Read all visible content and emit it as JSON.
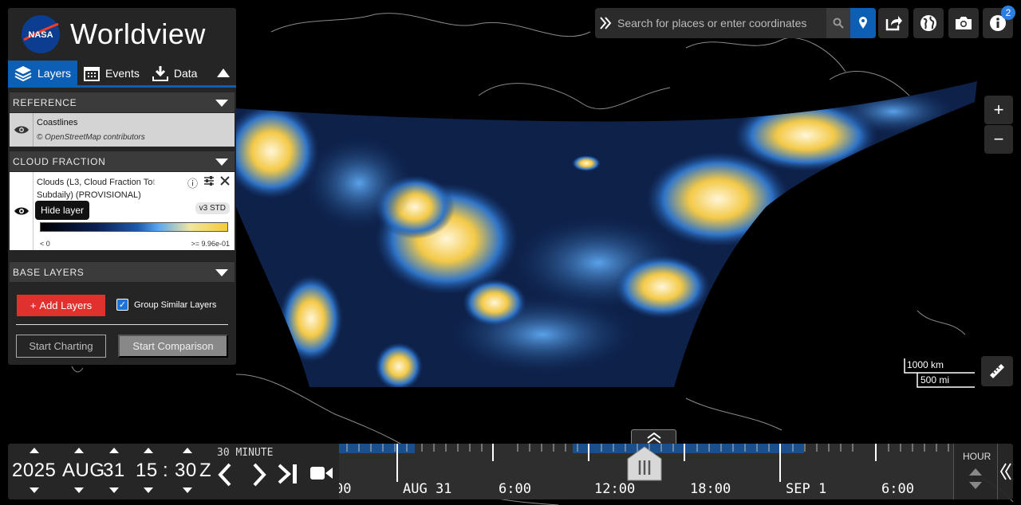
{
  "app": {
    "title": "Worldview",
    "logo_text": "NASA"
  },
  "tabs": [
    {
      "label": "Layers",
      "icon": "layers-icon",
      "active": true
    },
    {
      "label": "Events",
      "icon": "calendar-icon",
      "active": false
    },
    {
      "label": "Data",
      "icon": "download-icon",
      "active": false
    }
  ],
  "groups": {
    "reference": "REFERENCE",
    "cloud": "CLOUD FRACTION",
    "base": "BASE LAYERS"
  },
  "reference_layer": {
    "name": "Coastlines",
    "attribution": "© OpenStreetMap contributors"
  },
  "cloud_layer": {
    "title_line1": "Clouds (L3, Cloud Fraction To",
    "title_fade": "t",
    "title_line2": "Subdaily) (PROVISIONAL)",
    "version": "v3 STD",
    "legend_min": "< 0",
    "legend_max": ">= 9.96e-01"
  },
  "tooltip": "Hide layer",
  "actions": {
    "add_layers": "Add Layers",
    "group_similar": "Group Similar Layers",
    "group_similar_checked": true,
    "start_charting": "Start Charting",
    "start_comparison": "Start Comparison"
  },
  "search": {
    "placeholder": "Search for places or enter coordinates"
  },
  "toolbar": {
    "info_badge": "2"
  },
  "zoom": {
    "in": "+",
    "out": "−"
  },
  "scale": {
    "km": "1000 km",
    "mi": "500 mi"
  },
  "date": {
    "year": "2025",
    "month": "AUG",
    "day": "31",
    "hour": "15",
    "sep": ":",
    "minute": "30",
    "zone": "Z"
  },
  "interval": "30 MINUTE",
  "timeline_labels": [
    "00",
    "AUG 31",
    "6:00",
    "12:00",
    "18:00",
    "SEP 1",
    "6:00"
  ],
  "zoom_level": "HOUR",
  "colors": {
    "accent": "#0d5eb5",
    "add_layers": "#e0312f",
    "panel": "#282828"
  }
}
